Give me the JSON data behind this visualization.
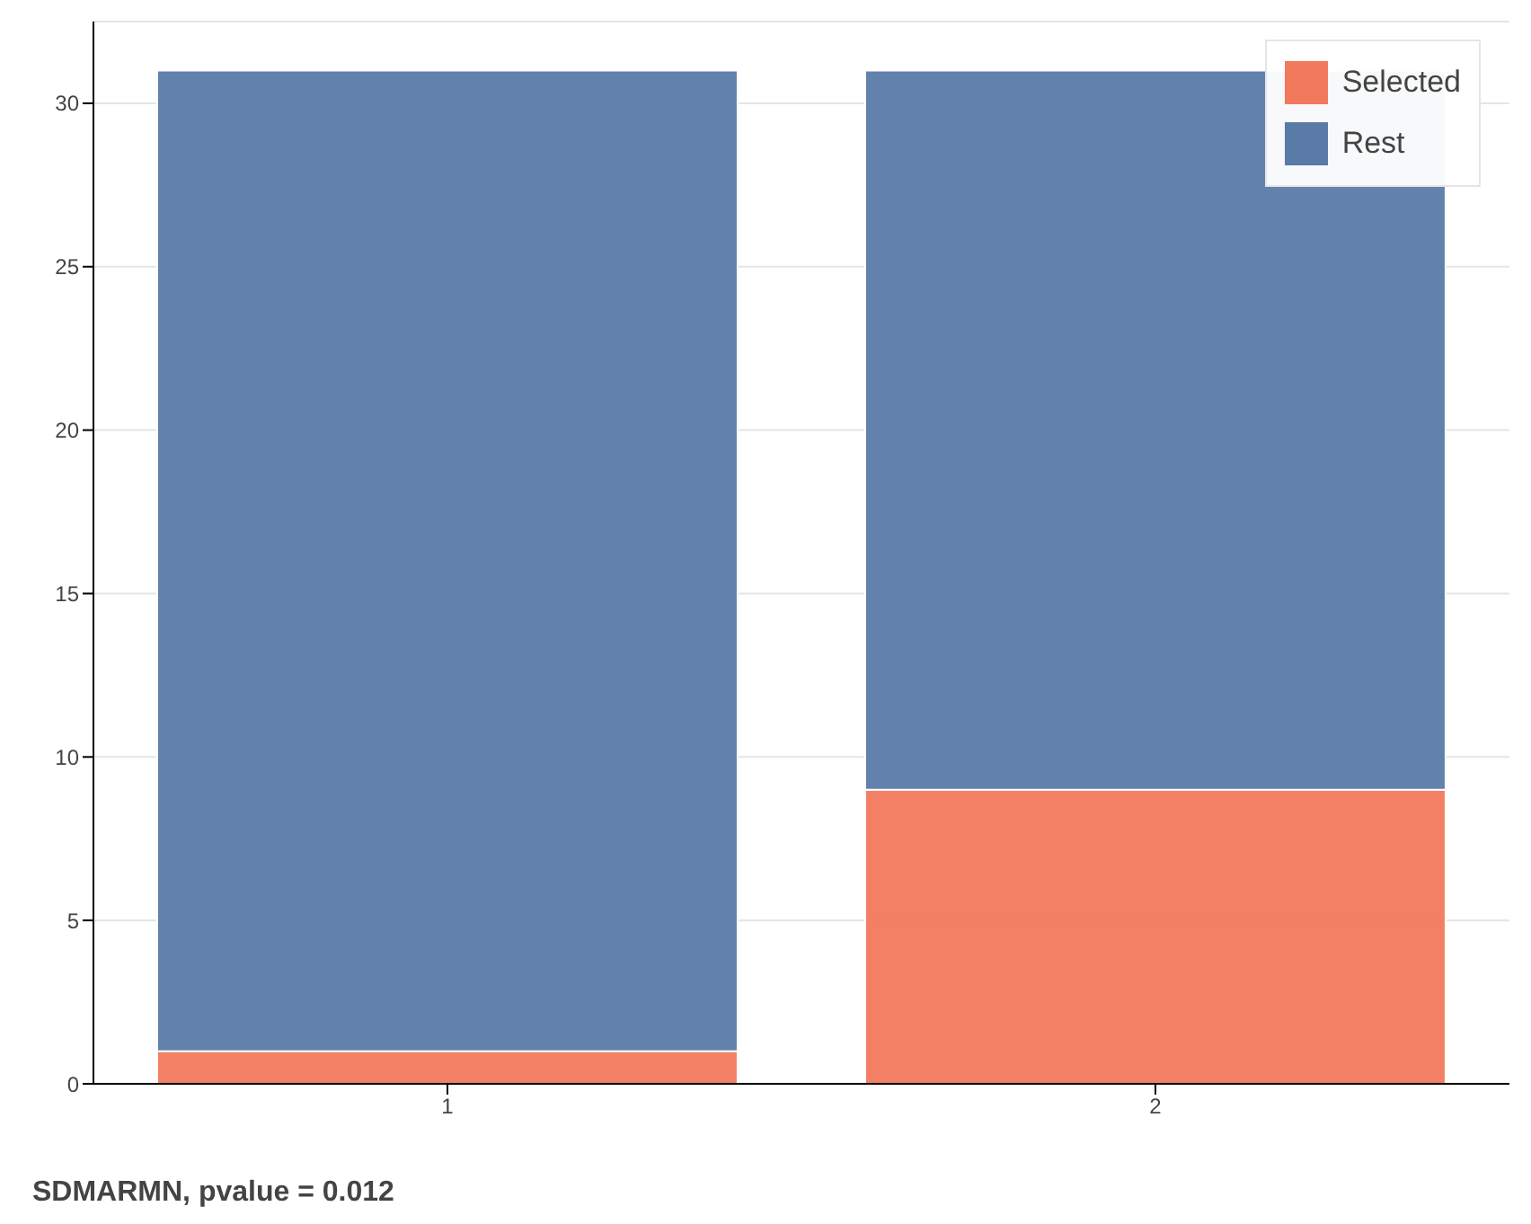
{
  "chart_data": {
    "type": "bar",
    "title": "SDMARMN, pvalue = 0.012",
    "categories": [
      "1",
      "2"
    ],
    "stacked": true,
    "series": [
      {
        "name": "Selected",
        "color": "#f2795c",
        "values": [
          1,
          9
        ]
      },
      {
        "name": "Rest",
        "color": "#5a7aa8",
        "values": [
          30,
          22
        ]
      }
    ],
    "ylim": [
      0,
      32.5
    ],
    "yticks": [
      0,
      5,
      10,
      15,
      20,
      25,
      30
    ],
    "grid": "y",
    "legend": "top right"
  }
}
